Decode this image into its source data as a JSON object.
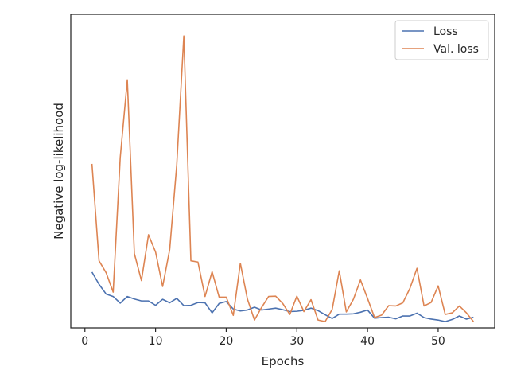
{
  "chart_data": {
    "type": "line",
    "title": "",
    "xlabel": "Epochs",
    "ylabel": "Negative log-likelihood",
    "xlim": [
      -2,
      58
    ],
    "ylim": [
      0,
      100
    ],
    "xticks": [
      0,
      10,
      20,
      30,
      40,
      50
    ],
    "grid": false,
    "legend": "top-right",
    "series": [
      {
        "name": "Loss",
        "color": "#4c72b0",
        "x": [
          1,
          2,
          3,
          4,
          5,
          6,
          7,
          8,
          9,
          10,
          11,
          12,
          13,
          14,
          15,
          16,
          17,
          18,
          19,
          20,
          21,
          22,
          23,
          24,
          25,
          26,
          27,
          28,
          29,
          30,
          31,
          32,
          33,
          34,
          35,
          36,
          37,
          38,
          39,
          40,
          41,
          42,
          43,
          44,
          45,
          46,
          47,
          48,
          49,
          50,
          51,
          52,
          53,
          54,
          55
        ],
        "values": [
          17.8,
          13.9,
          10.8,
          10.0,
          7.9,
          10.0,
          9.2,
          8.6,
          8.6,
          7.2,
          9.1,
          8.0,
          9.4,
          7.1,
          7.2,
          8.1,
          8.0,
          4.8,
          7.8,
          8.4,
          6.0,
          5.4,
          5.7,
          6.6,
          5.7,
          6.0,
          6.3,
          5.8,
          5.2,
          5.3,
          5.6,
          6.3,
          5.5,
          4.2,
          3.0,
          4.4,
          4.4,
          4.5,
          5.0,
          5.7,
          3.1,
          3.3,
          3.4,
          2.9,
          3.8,
          3.8,
          4.7,
          3.3,
          2.8,
          2.5,
          2.0,
          2.7,
          3.8,
          2.8,
          3.4
        ]
      },
      {
        "name": "Val. loss",
        "color": "#dd8452",
        "x": [
          1,
          2,
          3,
          4,
          5,
          6,
          7,
          8,
          9,
          10,
          11,
          12,
          13,
          14,
          15,
          16,
          17,
          18,
          19,
          20,
          21,
          22,
          23,
          24,
          25,
          26,
          27,
          28,
          29,
          30,
          31,
          32,
          33,
          34,
          35,
          36,
          37,
          38,
          39,
          40,
          41,
          42,
          43,
          44,
          45,
          46,
          47,
          48,
          49,
          50,
          51,
          52,
          53,
          54,
          55
        ],
        "values": [
          52.3,
          21.4,
          17.6,
          11.4,
          54.3,
          79.1,
          23.7,
          15.1,
          29.7,
          24.2,
          13.2,
          25.0,
          52.0,
          93.1,
          21.4,
          21.0,
          10.0,
          17.9,
          9.8,
          9.8,
          4.0,
          20.6,
          9.2,
          2.5,
          6.5,
          10.0,
          10.1,
          7.8,
          4.3,
          10.1,
          5.2,
          9.0,
          2.5,
          2.0,
          5.9,
          18.2,
          5.1,
          9.1,
          15.3,
          9.4,
          3.3,
          4.1,
          7.1,
          7.0,
          8.0,
          12.6,
          19.0,
          7.0,
          8.1,
          13.4,
          4.3,
          4.8,
          7.0,
          4.8,
          2.0
        ]
      }
    ]
  }
}
